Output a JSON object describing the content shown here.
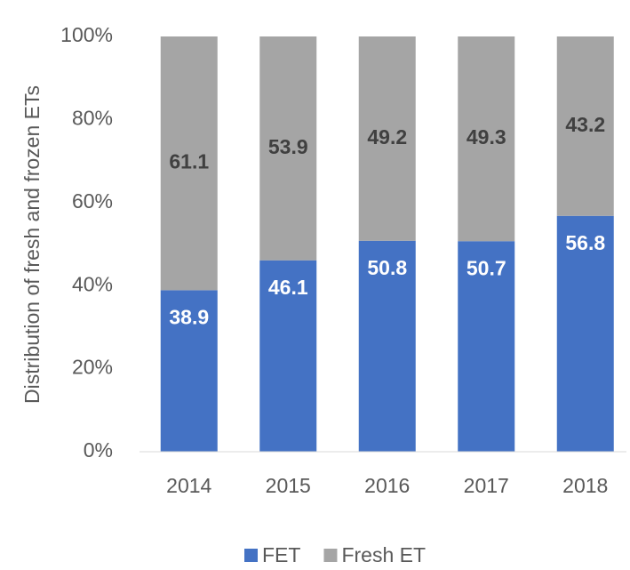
{
  "chart_data": {
    "type": "stacked_bar",
    "ylabel": "Distribution of fresh and frozen ETs",
    "categories": [
      "2014",
      "2015",
      "2016",
      "2017",
      "2018"
    ],
    "series": [
      {
        "name": "FET",
        "color": "#4472c4",
        "label_color": "#ffffff",
        "values": [
          38.9,
          46.1,
          50.8,
          50.7,
          56.8
        ]
      },
      {
        "name": "Fresh ET",
        "color": "#a5a5a5",
        "label_color": "#404040",
        "values": [
          61.1,
          53.9,
          49.2,
          49.3,
          43.2
        ]
      }
    ],
    "ylim": [
      0,
      100
    ],
    "yticks": [
      {
        "value": 0,
        "label": "0%"
      },
      {
        "value": 20,
        "label": "20%"
      },
      {
        "value": 40,
        "label": "40%"
      },
      {
        "value": 60,
        "label": "60%"
      },
      {
        "value": 80,
        "label": "80%"
      },
      {
        "value": 100,
        "label": "100%"
      }
    ],
    "grid": false,
    "legend": "bottom"
  }
}
